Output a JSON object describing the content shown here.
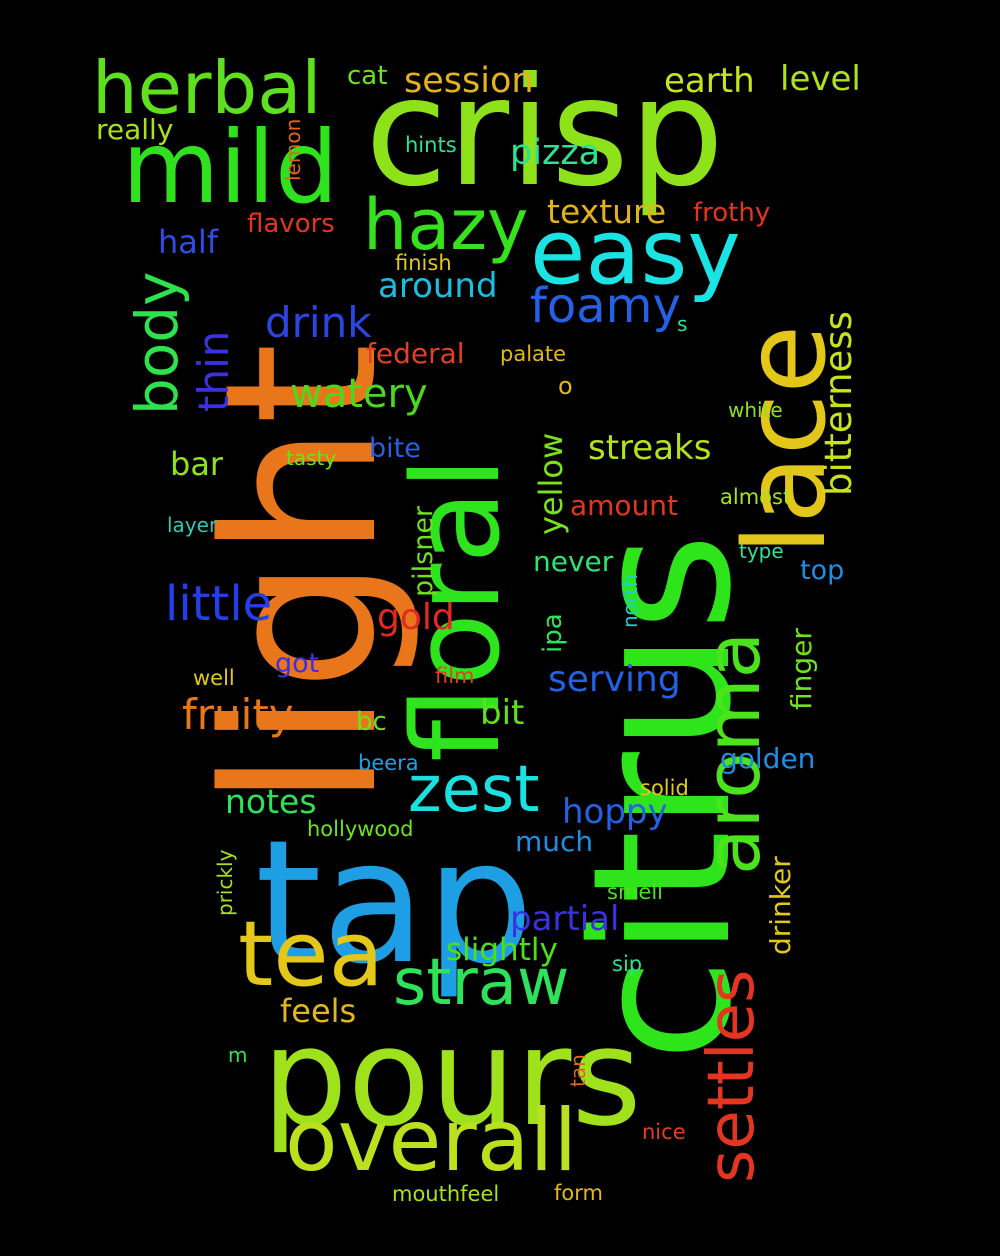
{
  "background_color": "#000000",
  "words": [
    {
      "text": "crisp",
      "color": "#8ee21a",
      "orientation": "horizontal"
    },
    {
      "text": "citrus",
      "color": "#2ee51c",
      "orientation": "vertical"
    },
    {
      "text": "light",
      "color": "#e9761a",
      "orientation": "vertical"
    },
    {
      "text": "tap",
      "color": "#1e9fe4",
      "orientation": "horizontal"
    },
    {
      "text": "pours",
      "color": "#9fe21c",
      "orientation": "horizontal"
    },
    {
      "text": "floral",
      "color": "#2de41d",
      "orientation": "vertical"
    },
    {
      "text": "lace",
      "color": "#e2c61a",
      "orientation": "vertical"
    },
    {
      "text": "mild",
      "color": "#2fe21d",
      "orientation": "horizontal"
    },
    {
      "text": "herbal",
      "color": "#5fe01d",
      "orientation": "horizontal"
    },
    {
      "text": "aroma",
      "color": "#4ae31c",
      "orientation": "vertical"
    },
    {
      "text": "easy",
      "color": "#1be3e3",
      "orientation": "horizontal"
    },
    {
      "text": "tea",
      "color": "#e3c81a",
      "orientation": "horizontal"
    },
    {
      "text": "overall",
      "color": "#bce01d",
      "orientation": "horizontal"
    },
    {
      "text": "straw",
      "color": "#2ee25a",
      "orientation": "horizontal"
    },
    {
      "text": "hazy",
      "color": "#36e21e",
      "orientation": "horizontal"
    },
    {
      "text": "settles",
      "color": "#e43520",
      "orientation": "vertical"
    },
    {
      "text": "zest",
      "color": "#1be0e0",
      "orientation": "horizontal"
    },
    {
      "text": "body",
      "color": "#2de24a",
      "orientation": "vertical"
    },
    {
      "text": "foamy",
      "color": "#2461e6",
      "orientation": "horizontal"
    },
    {
      "text": "little",
      "color": "#2340e8",
      "orientation": "horizontal"
    },
    {
      "text": "bitterness",
      "color": "#c8e21c",
      "orientation": "vertical"
    },
    {
      "text": "fruity",
      "color": "#e8761a",
      "orientation": "horizontal"
    },
    {
      "text": "drink",
      "color": "#2a46e2",
      "orientation": "horizontal"
    },
    {
      "text": "watery",
      "color": "#4ad91c",
      "orientation": "horizontal"
    },
    {
      "text": "thin",
      "color": "#3a32e2",
      "orientation": "vertical"
    },
    {
      "text": "session",
      "color": "#e3b21c",
      "orientation": "horizontal"
    },
    {
      "text": "earth",
      "color": "#c8e21c",
      "orientation": "horizontal"
    },
    {
      "text": "level",
      "color": "#aae21d",
      "orientation": "horizontal"
    },
    {
      "text": "texture",
      "color": "#e2b21c",
      "orientation": "horizontal"
    },
    {
      "text": "pizza",
      "color": "#2ee293",
      "orientation": "horizontal"
    },
    {
      "text": "around",
      "color": "#1bbde2",
      "orientation": "horizontal"
    },
    {
      "text": "streaks",
      "color": "#b4e21c",
      "orientation": "horizontal"
    },
    {
      "text": "serving",
      "color": "#2461e6",
      "orientation": "horizontal"
    },
    {
      "text": "partial",
      "color": "#3a32e2",
      "orientation": "horizontal"
    },
    {
      "text": "hoppy",
      "color": "#2461e6",
      "orientation": "horizontal"
    },
    {
      "text": "notes",
      "color": "#2ee257",
      "orientation": "horizontal"
    },
    {
      "text": "slightly",
      "color": "#4ae01c",
      "orientation": "horizontal"
    },
    {
      "text": "half",
      "color": "#2f4ce4",
      "orientation": "horizontal"
    },
    {
      "text": "flavors",
      "color": "#e2361e",
      "orientation": "horizontal"
    },
    {
      "text": "frothy",
      "color": "#e2361e",
      "orientation": "horizontal"
    },
    {
      "text": "federal",
      "color": "#e2401e",
      "orientation": "horizontal"
    },
    {
      "text": "yellow",
      "color": "#7ae21c",
      "orientation": "vertical"
    },
    {
      "text": "gold",
      "color": "#e22a22",
      "orientation": "horizontal"
    },
    {
      "text": "bit",
      "color": "#5fe01d",
      "orientation": "horizontal"
    },
    {
      "text": "bar",
      "color": "#8ee21a",
      "orientation": "horizontal"
    },
    {
      "text": "feels",
      "color": "#e2b81c",
      "orientation": "horizontal"
    },
    {
      "text": "golden",
      "color": "#1e8ee2",
      "orientation": "horizontal"
    },
    {
      "text": "never",
      "color": "#2ee273",
      "orientation": "horizontal"
    },
    {
      "text": "amount",
      "color": "#e2361e",
      "orientation": "horizontal"
    },
    {
      "text": "much",
      "color": "#1e8ee2",
      "orientation": "horizontal"
    },
    {
      "text": "really",
      "color": "#a8e21c",
      "orientation": "horizontal"
    },
    {
      "text": "cat",
      "color": "#6ee21c",
      "orientation": "horizontal"
    },
    {
      "text": "drinker",
      "color": "#e2c81a",
      "orientation": "vertical"
    },
    {
      "text": "finger",
      "color": "#6ee21c",
      "orientation": "vertical"
    },
    {
      "text": "pilsner",
      "color": "#6ee21c",
      "orientation": "vertical"
    },
    {
      "text": "bite",
      "color": "#2461e6",
      "orientation": "horizontal"
    },
    {
      "text": "got",
      "color": "#3a32e2",
      "orientation": "horizontal"
    },
    {
      "text": "top",
      "color": "#1e8ee2",
      "orientation": "horizontal"
    },
    {
      "text": "bc",
      "color": "#6ee21c",
      "orientation": "horizontal"
    },
    {
      "text": "ipa",
      "color": "#2ee257",
      "orientation": "vertical"
    },
    {
      "text": "o",
      "color": "#e2b81c",
      "orientation": "horizontal"
    },
    {
      "text": "hints",
      "color": "#2ee293",
      "orientation": "horizontal"
    },
    {
      "text": "finish",
      "color": "#e2c81a",
      "orientation": "horizontal"
    },
    {
      "text": "palate",
      "color": "#e2b81c",
      "orientation": "horizontal"
    },
    {
      "text": "white",
      "color": "#8ee21a",
      "orientation": "horizontal"
    },
    {
      "text": "tasty",
      "color": "#6ee21c",
      "orientation": "horizontal"
    },
    {
      "text": "almost",
      "color": "#a8e21c",
      "orientation": "horizontal"
    },
    {
      "text": "layer",
      "color": "#2ec9b8",
      "orientation": "horizontal"
    },
    {
      "text": "type",
      "color": "#2ee293",
      "orientation": "horizontal"
    },
    {
      "text": "north",
      "color": "#1bd0c8",
      "orientation": "vertical"
    },
    {
      "text": "lemon",
      "color": "#e2641e",
      "orientation": "vertical"
    },
    {
      "text": "s",
      "color": "#2ee293",
      "orientation": "horizontal"
    },
    {
      "text": "well",
      "color": "#e2c81a",
      "orientation": "horizontal"
    },
    {
      "text": "film",
      "color": "#e2401e",
      "orientation": "horizontal"
    },
    {
      "text": "beera",
      "color": "#1e9fe4",
      "orientation": "horizontal"
    },
    {
      "text": "solid",
      "color": "#e2c81a",
      "orientation": "horizontal"
    },
    {
      "text": "hollywood",
      "color": "#6ee21c",
      "orientation": "horizontal"
    },
    {
      "text": "prickly",
      "color": "#a8e21c",
      "orientation": "vertical"
    },
    {
      "text": "smell",
      "color": "#4ae01c",
      "orientation": "horizontal"
    },
    {
      "text": "sip",
      "color": "#2ee293",
      "orientation": "horizontal"
    },
    {
      "text": "m",
      "color": "#2ee257",
      "orientation": "horizontal"
    },
    {
      "text": "tan",
      "color": "#e2641e",
      "orientation": "vertical"
    },
    {
      "text": "nice",
      "color": "#e2401e",
      "orientation": "horizontal"
    },
    {
      "text": "mouthfeel",
      "color": "#a8e21c",
      "orientation": "horizontal"
    },
    {
      "text": "form",
      "color": "#e2b81c",
      "orientation": "horizontal"
    }
  ]
}
